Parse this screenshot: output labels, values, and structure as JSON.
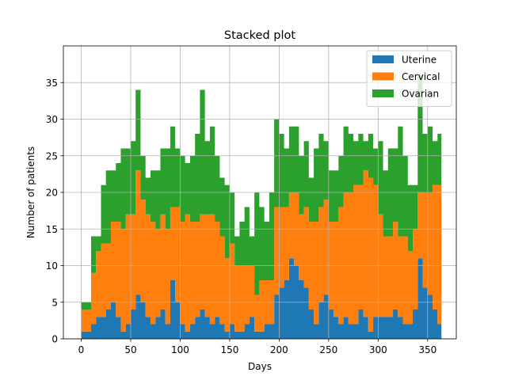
{
  "chart_data": {
    "type": "area",
    "stacked": true,
    "title": "Stacked plot",
    "xlabel": "Days",
    "ylabel": "Number of patients",
    "xlim": [
      -18,
      379
    ],
    "ylim": [
      0,
      40
    ],
    "xticks": [
      0,
      50,
      100,
      150,
      200,
      250,
      300,
      350
    ],
    "yticks": [
      0,
      5,
      10,
      15,
      20,
      25,
      30,
      35
    ],
    "grid": true,
    "legend_position": "top-right",
    "x": [
      0,
      5,
      10,
      15,
      20,
      25,
      30,
      35,
      40,
      45,
      50,
      55,
      60,
      65,
      70,
      75,
      80,
      85,
      90,
      95,
      100,
      105,
      110,
      115,
      120,
      125,
      130,
      135,
      140,
      145,
      150,
      155,
      160,
      165,
      170,
      175,
      180,
      185,
      190,
      195,
      200,
      205,
      210,
      215,
      220,
      225,
      230,
      235,
      240,
      245,
      250,
      255,
      260,
      265,
      270,
      275,
      280,
      285,
      290,
      295,
      300,
      305,
      310,
      315,
      320,
      325,
      330,
      335,
      340,
      345,
      350,
      355,
      360,
      364
    ],
    "series": [
      {
        "name": "Uterine",
        "color": "#1f77b4",
        "values": [
          1,
          1,
          2,
          3,
          3,
          4,
          5,
          3,
          1,
          2,
          4,
          6,
          5,
          3,
          2,
          3,
          4,
          2,
          8,
          5,
          2,
          1,
          2,
          3,
          4,
          3,
          2,
          3,
          2,
          1,
          2,
          1,
          1,
          2,
          3,
          1,
          1,
          2,
          2,
          6,
          7,
          8,
          11,
          10,
          8,
          7,
          4,
          2,
          5,
          6,
          4,
          3,
          2,
          3,
          2,
          2,
          4,
          3,
          1,
          3,
          3,
          3,
          3,
          4,
          3,
          2,
          2,
          4,
          11,
          7,
          6,
          4,
          2,
          2
        ]
      },
      {
        "name": "Cervical",
        "color": "#ff7f0e",
        "values": [
          3,
          3,
          7,
          9,
          10,
          9,
          11,
          13,
          14,
          15,
          13,
          17,
          14,
          14,
          14,
          12,
          13,
          13,
          10,
          13,
          14,
          16,
          14,
          13,
          13,
          14,
          15,
          13,
          12,
          10,
          11,
          9,
          9,
          8,
          7,
          5,
          7,
          6,
          6,
          12,
          11,
          10,
          9,
          10,
          9,
          11,
          12,
          14,
          13,
          13,
          12,
          13,
          16,
          17,
          18,
          19,
          17,
          20,
          21,
          18,
          14,
          11,
          11,
          12,
          11,
          12,
          10,
          11,
          9,
          13,
          14,
          17,
          19,
          19
        ]
      },
      {
        "name": "Ovarian",
        "color": "#2ca02c",
        "values": [
          1,
          1,
          5,
          2,
          8,
          10,
          7,
          8,
          11,
          9,
          10,
          11,
          6,
          5,
          7,
          8,
          9,
          11,
          11,
          8,
          9,
          7,
          9,
          12,
          17,
          10,
          12,
          9,
          8,
          10,
          7,
          4,
          6,
          8,
          4,
          14,
          10,
          8,
          12,
          12,
          10,
          8,
          9,
          9,
          8,
          9,
          6,
          10,
          10,
          8,
          7,
          7,
          7,
          9,
          8,
          6,
          7,
          4,
          6,
          5,
          10,
          9,
          12,
          10,
          15,
          11,
          9,
          6,
          16,
          8,
          9,
          6,
          7,
          6
        ]
      }
    ]
  }
}
